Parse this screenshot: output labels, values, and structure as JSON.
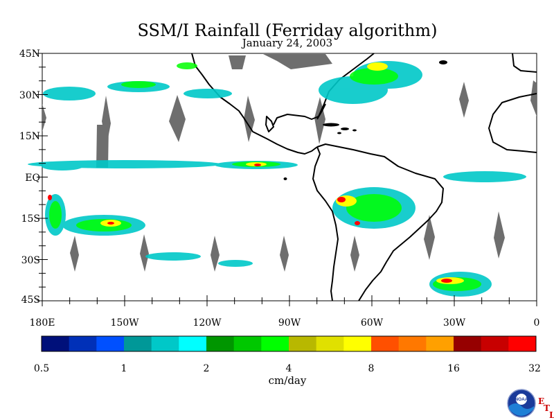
{
  "header": {
    "title": "SSM/I Rainfall (Ferriday algorithm)",
    "date": "January 24, 2003"
  },
  "map": {
    "lon_labels": [
      "180E",
      "150W",
      "120W",
      "90W",
      "60W",
      "30W",
      "0"
    ],
    "lat_labels": [
      "45N",
      "30N",
      "15N",
      "EQ",
      "15S",
      "30S",
      "45S"
    ],
    "lon_range": [
      -180,
      0
    ],
    "lat_range": [
      -45,
      45
    ]
  },
  "colorbar": {
    "colors": [
      "#00107a",
      "#0030b8",
      "#0050ff",
      "#009898",
      "#00c8c8",
      "#00ffff",
      "#009600",
      "#00c800",
      "#00ff00",
      "#b8b800",
      "#e0e000",
      "#ffff00",
      "#ff5000",
      "#ff7800",
      "#ffa000",
      "#960000",
      "#c80000",
      "#ff0000"
    ],
    "tick_labels": [
      "0.5",
      "1",
      "2",
      "4",
      "8",
      "16",
      "32"
    ],
    "units": "cm/day"
  },
  "logo": {
    "agency": "NOAA",
    "lab_letters": [
      "E",
      "T",
      "L"
    ]
  }
}
